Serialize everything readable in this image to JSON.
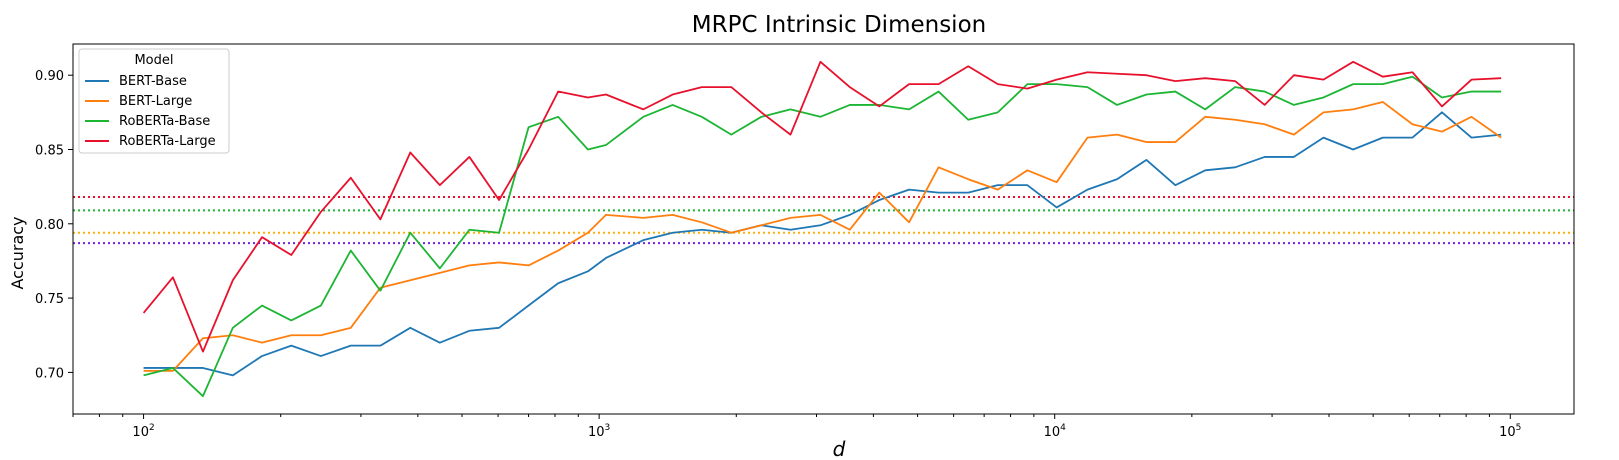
{
  "chart_data": {
    "type": "line",
    "title": "MRPC Intrinsic Dimension",
    "xlabel": "d",
    "ylabel": "Accuracy",
    "xscale": "log",
    "xlim": [
      70,
      138000
    ],
    "ylim": [
      0.672,
      0.921
    ],
    "grid": false,
    "xticks": [
      {
        "value": 100,
        "base": "10",
        "exp": "2"
      },
      {
        "value": 1000,
        "base": "10",
        "exp": "3"
      },
      {
        "value": 10000,
        "base": "10",
        "exp": "4"
      },
      {
        "value": 100000,
        "base": "10",
        "exp": "5"
      }
    ],
    "yticks": [
      {
        "value": 0.7,
        "label": "0.70"
      },
      {
        "value": 0.75,
        "label": "0.75"
      },
      {
        "value": 0.8,
        "label": "0.80"
      },
      {
        "value": 0.85,
        "label": "0.85"
      },
      {
        "value": 0.9,
        "label": "0.90"
      }
    ],
    "legend": {
      "title": "Model",
      "position": "top-left"
    },
    "x": [
      100,
      116,
      135,
      157,
      182,
      211,
      245,
      285,
      331,
      385,
      447,
      519,
      603,
      700,
      813,
      945,
      1035,
      1250,
      1450,
      1680,
      1950,
      2270,
      2630,
      3060,
      3550,
      4120,
      4790,
      5560,
      6460,
      7500,
      8710,
      10100,
      11800,
      13700,
      15900,
      18400,
      21400,
      24900,
      28900,
      33500,
      38900,
      45200,
      52500,
      61000,
      70800,
      82200,
      95500
    ],
    "series": [
      {
        "name": "BERT-Base",
        "color": "#1f77b4",
        "values": [
          0.703,
          0.703,
          0.703,
          0.698,
          0.711,
          0.718,
          0.711,
          0.718,
          0.718,
          0.73,
          0.72,
          0.728,
          0.73,
          0.745,
          0.76,
          0.768,
          0.777,
          0.789,
          0.794,
          0.796,
          0.794,
          0.799,
          0.796,
          0.799,
          0.806,
          0.816,
          0.823,
          0.821,
          0.821,
          0.826,
          0.826,
          0.811,
          0.823,
          0.83,
          0.843,
          0.826,
          0.836,
          0.838,
          0.845,
          0.845,
          0.858,
          0.85,
          0.858,
          0.858,
          0.875,
          0.858,
          0.86
        ]
      },
      {
        "name": "BERT-Large",
        "color": "#ff7f0e",
        "values": [
          0.701,
          0.701,
          0.723,
          0.725,
          0.72,
          0.725,
          0.725,
          0.73,
          0.757,
          0.762,
          0.767,
          0.772,
          0.774,
          0.772,
          0.782,
          0.794,
          0.806,
          0.804,
          0.806,
          0.801,
          0.794,
          0.799,
          0.804,
          0.806,
          0.796,
          0.821,
          0.801,
          0.838,
          0.83,
          0.823,
          0.836,
          0.828,
          0.858,
          0.86,
          0.855,
          0.855,
          0.872,
          0.87,
          0.867,
          0.86,
          0.875,
          0.877,
          0.882,
          0.867,
          0.862,
          0.872,
          0.858
        ]
      },
      {
        "name": "RoBERTa-Base",
        "color": "#1cb534",
        "values": [
          0.698,
          0.703,
          0.684,
          0.73,
          0.745,
          0.735,
          0.745,
          0.782,
          0.755,
          0.794,
          0.77,
          0.796,
          0.794,
          0.865,
          0.872,
          0.85,
          0.853,
          0.872,
          0.88,
          0.872,
          0.86,
          0.872,
          0.877,
          0.872,
          0.88,
          0.88,
          0.877,
          0.889,
          0.87,
          0.875,
          0.894,
          0.894,
          0.892,
          0.88,
          0.887,
          0.889,
          0.877,
          0.892,
          0.889,
          0.88,
          0.885,
          0.894,
          0.894,
          0.899,
          0.885,
          0.889,
          0.889
        ]
      },
      {
        "name": "RoBERTa-Large",
        "color": "#e8112d",
        "values": [
          0.74,
          0.764,
          0.714,
          0.762,
          0.791,
          0.779,
          0.808,
          0.831,
          0.803,
          0.848,
          0.826,
          0.845,
          0.816,
          0.85,
          0.889,
          0.885,
          0.887,
          0.877,
          0.887,
          0.892,
          0.892,
          0.875,
          0.86,
          0.909,
          0.892,
          0.879,
          0.894,
          0.894,
          0.906,
          0.894,
          0.891,
          0.897,
          0.902,
          0.901,
          0.9,
          0.896,
          0.898,
          0.896,
          0.88,
          0.9,
          0.897,
          0.909,
          0.899,
          0.902,
          0.879,
          0.897,
          0.898
        ]
      }
    ],
    "reference_lines": [
      {
        "y": 0.818,
        "color": "#e8112d"
      },
      {
        "y": 0.809,
        "color": "#1cb534"
      },
      {
        "y": 0.794,
        "color": "#ffb000"
      },
      {
        "y": 0.787,
        "color": "#7a1fe6"
      }
    ]
  }
}
